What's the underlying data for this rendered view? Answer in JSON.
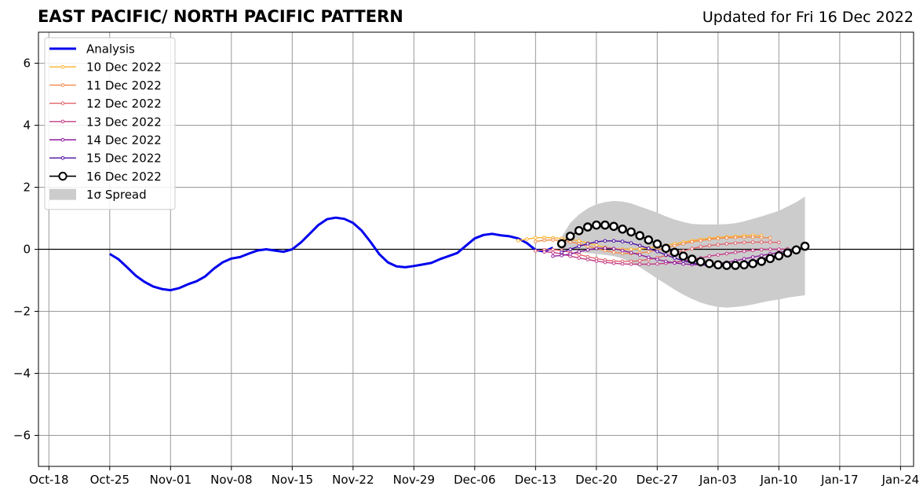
{
  "header": {
    "title": "EAST PACIFIC/ NORTH PACIFIC PATTERN",
    "updated": "Updated for Fri 16 Dec 2022"
  },
  "colors": {
    "analysis": "#0000ee",
    "spread": "#cccccc",
    "grid": "#999999",
    "forecast_10": "#fdb230",
    "forecast_11": "#f38a4d",
    "forecast_12": "#e1636b",
    "forecast_13": "#c33d86",
    "forecast_14": "#8f1e9e",
    "forecast_15": "#4d0fa2",
    "forecast_16": "#000000"
  },
  "chart_data": {
    "type": "line",
    "title": "EAST PACIFIC/ NORTH PACIFIC PATTERN",
    "xlabel": "",
    "ylabel": "",
    "x_unit": "days since Oct-18 2022 tick",
    "xlim": [
      -1.2,
      99.5
    ],
    "ylim": [
      -7,
      7
    ],
    "grid": true,
    "legend_position": "top-left",
    "x_ticks": [
      {
        "x": 0,
        "label": "Oct-18"
      },
      {
        "x": 7,
        "label": "Oct-25"
      },
      {
        "x": 14,
        "label": "Nov-01"
      },
      {
        "x": 21,
        "label": "Nov-08"
      },
      {
        "x": 28,
        "label": "Nov-15"
      },
      {
        "x": 35,
        "label": "Nov-22"
      },
      {
        "x": 42,
        "label": "Nov-29"
      },
      {
        "x": 49,
        "label": "Dec-06"
      },
      {
        "x": 56,
        "label": "Dec-13"
      },
      {
        "x": 63,
        "label": "Dec-20"
      },
      {
        "x": 70,
        "label": "Dec-27"
      },
      {
        "x": 77,
        "label": "Jan-03"
      },
      {
        "x": 84,
        "label": "Jan-10"
      },
      {
        "x": 91,
        "label": "Jan-17"
      },
      {
        "x": 98,
        "label": "Jan-24"
      }
    ],
    "y_ticks": [
      {
        "y": 6,
        "label": "6"
      },
      {
        "y": 4,
        "label": "4"
      },
      {
        "y": 2,
        "label": "2"
      },
      {
        "y": 0,
        "label": "0"
      },
      {
        "y": -2,
        "label": "−2"
      },
      {
        "y": -4,
        "label": "−4"
      },
      {
        "y": -6,
        "label": "−6"
      }
    ],
    "legend": [
      {
        "label": "Analysis",
        "style": "analysis",
        "color_key": "analysis"
      },
      {
        "label": "10 Dec 2022",
        "style": "small",
        "color_key": "forecast_10"
      },
      {
        "label": "11 Dec 2022",
        "style": "small",
        "color_key": "forecast_11"
      },
      {
        "label": "12 Dec 2022",
        "style": "small",
        "color_key": "forecast_12"
      },
      {
        "label": "13 Dec 2022",
        "style": "small",
        "color_key": "forecast_13"
      },
      {
        "label": "14 Dec 2022",
        "style": "small",
        "color_key": "forecast_14"
      },
      {
        "label": "15 Dec 2022",
        "style": "small",
        "color_key": "forecast_15"
      },
      {
        "label": "16 Dec 2022",
        "style": "big",
        "color_key": "forecast_16"
      },
      {
        "label": "1σ Spread",
        "style": "spread",
        "color_key": "spread"
      }
    ],
    "analysis": {
      "x": [
        7,
        8,
        9,
        10,
        11,
        12,
        13,
        14,
        15,
        16,
        17,
        18,
        19,
        20,
        21,
        22,
        23,
        24,
        25,
        26,
        27,
        28,
        29,
        30,
        31,
        32,
        33,
        34,
        35,
        36,
        37,
        38,
        39,
        40,
        41,
        42,
        43,
        44,
        45,
        46,
        47,
        48,
        49,
        50,
        51,
        52,
        53,
        54,
        55,
        56,
        57,
        58
      ],
      "y": [
        -0.15,
        -0.32,
        -0.58,
        -0.85,
        -1.05,
        -1.2,
        -1.28,
        -1.32,
        -1.25,
        -1.13,
        -1.03,
        -0.87,
        -0.62,
        -0.42,
        -0.3,
        -0.25,
        -0.14,
        -0.04,
        0.0,
        -0.04,
        -0.08,
        0.0,
        0.22,
        0.5,
        0.78,
        0.97,
        1.02,
        0.98,
        0.85,
        0.6,
        0.24,
        -0.15,
        -0.42,
        -0.55,
        -0.58,
        -0.54,
        -0.49,
        -0.44,
        -0.32,
        -0.22,
        -0.12,
        0.12,
        0.35,
        0.46,
        0.5,
        0.45,
        0.42,
        0.35,
        0.2,
        -0.02,
        -0.07,
        0.05
      ]
    },
    "spread": {
      "x": [
        59,
        60,
        61,
        62,
        63,
        64,
        65,
        66,
        67,
        68,
        69,
        70,
        71,
        72,
        73,
        74,
        75,
        76,
        77,
        78,
        79,
        80,
        81,
        82,
        83,
        84,
        85,
        86,
        87
      ],
      "upper": [
        0.4,
        0.85,
        1.12,
        1.32,
        1.45,
        1.52,
        1.56,
        1.54,
        1.48,
        1.38,
        1.28,
        1.18,
        1.06,
        0.96,
        0.88,
        0.82,
        0.8,
        0.8,
        0.8,
        0.81,
        0.84,
        0.9,
        0.98,
        1.06,
        1.15,
        1.24,
        1.38,
        1.52,
        1.7
      ],
      "lower": [
        0.0,
        -0.05,
        -0.08,
        -0.12,
        -0.15,
        -0.18,
        -0.22,
        -0.3,
        -0.42,
        -0.58,
        -0.76,
        -0.95,
        -1.12,
        -1.3,
        -1.46,
        -1.6,
        -1.72,
        -1.8,
        -1.86,
        -1.88,
        -1.86,
        -1.83,
        -1.78,
        -1.72,
        -1.66,
        -1.62,
        -1.56,
        -1.52,
        -1.48
      ]
    },
    "series": [
      {
        "name": "10 Dec 2022",
        "color_key": "forecast_10",
        "marker": "small",
        "x": [
          54,
          55,
          56,
          57,
          58,
          59,
          60,
          61,
          62,
          63,
          64,
          65,
          66,
          67,
          68,
          69,
          70,
          71,
          72,
          73,
          74,
          75,
          76,
          77,
          78,
          79,
          80,
          81,
          82
        ],
        "y": [
          0.28,
          0.33,
          0.37,
          0.38,
          0.37,
          0.35,
          0.32,
          0.27,
          0.2,
          0.13,
          0.06,
          0.02,
          0.0,
          0.0,
          0.01,
          0.04,
          0.08,
          0.13,
          0.18,
          0.23,
          0.28,
          0.32,
          0.36,
          0.38,
          0.4,
          0.42,
          0.44,
          0.45,
          0.44
        ]
      },
      {
        "name": "11 Dec 2022",
        "color_key": "forecast_11",
        "marker": "small",
        "x": [
          56,
          57,
          58,
          59,
          60,
          61,
          62,
          63,
          64,
          65,
          66,
          67,
          68,
          69,
          70,
          71,
          72,
          73,
          74,
          75,
          76,
          77,
          78,
          79,
          80,
          81,
          82,
          83
        ],
        "y": [
          0.25,
          0.29,
          0.3,
          0.28,
          0.24,
          0.18,
          0.1,
          0.03,
          -0.04,
          -0.1,
          -0.13,
          -0.14,
          -0.12,
          -0.08,
          -0.02,
          0.05,
          0.12,
          0.18,
          0.24,
          0.28,
          0.32,
          0.35,
          0.37,
          0.38,
          0.39,
          0.39,
          0.38,
          0.37
        ]
      },
      {
        "name": "12 Dec 2022",
        "color_key": "forecast_12",
        "marker": "small",
        "x": [
          56,
          57,
          58,
          59,
          60,
          61,
          62,
          63,
          64,
          65,
          66,
          67,
          68,
          69,
          70,
          71,
          72,
          73,
          74,
          75,
          76,
          77,
          78,
          79,
          80,
          81,
          82,
          83,
          84
        ],
        "y": [
          -0.05,
          -0.02,
          -0.01,
          -0.04,
          -0.1,
          -0.17,
          -0.24,
          -0.3,
          -0.35,
          -0.38,
          -0.39,
          -0.39,
          -0.37,
          -0.33,
          -0.27,
          -0.2,
          -0.12,
          -0.05,
          0.02,
          0.08,
          0.12,
          0.15,
          0.18,
          0.2,
          0.22,
          0.23,
          0.23,
          0.23,
          0.22
        ]
      },
      {
        "name": "13 Dec 2022",
        "color_key": "forecast_13",
        "marker": "small",
        "x": [
          57,
          58,
          59,
          60,
          61,
          62,
          63,
          64,
          65,
          66,
          67,
          68,
          69,
          70,
          71,
          72,
          73,
          74,
          75,
          76,
          77,
          78,
          79,
          80,
          81,
          82,
          83,
          84,
          85
        ],
        "y": [
          -0.08,
          -0.1,
          -0.15,
          -0.22,
          -0.28,
          -0.33,
          -0.38,
          -0.42,
          -0.45,
          -0.47,
          -0.48,
          -0.48,
          -0.48,
          -0.47,
          -0.45,
          -0.42,
          -0.38,
          -0.33,
          -0.28,
          -0.22,
          -0.18,
          -0.14,
          -0.1,
          -0.06,
          -0.03,
          -0.01,
          0.0,
          0.0,
          0.01
        ]
      },
      {
        "name": "14 Dec 2022",
        "color_key": "forecast_14",
        "marker": "small",
        "x": [
          58,
          59,
          60,
          61,
          62,
          63,
          64,
          65,
          66,
          67,
          68,
          69,
          70,
          71,
          72,
          73,
          74,
          75,
          76,
          77,
          78,
          79,
          80,
          81,
          82,
          83,
          84,
          85,
          86
        ],
        "y": [
          -0.22,
          -0.2,
          -0.15,
          -0.08,
          -0.02,
          0.03,
          0.04,
          0.02,
          -0.04,
          -0.11,
          -0.18,
          -0.26,
          -0.33,
          -0.39,
          -0.44,
          -0.47,
          -0.49,
          -0.5,
          -0.49,
          -0.46,
          -0.42,
          -0.37,
          -0.31,
          -0.25,
          -0.2,
          -0.15,
          -0.1,
          -0.06,
          -0.03
        ]
      },
      {
        "name": "15 Dec 2022",
        "color_key": "forecast_15",
        "marker": "small",
        "x": [
          59,
          60,
          61,
          62,
          63,
          64,
          65,
          66,
          67,
          68,
          69,
          70,
          71,
          72,
          73,
          74,
          75,
          76,
          77,
          78,
          79,
          80,
          81,
          82,
          83,
          84,
          85,
          86
        ],
        "y": [
          -0.1,
          0.0,
          0.1,
          0.18,
          0.24,
          0.27,
          0.27,
          0.25,
          0.2,
          0.12,
          0.03,
          -0.07,
          -0.18,
          -0.28,
          -0.37,
          -0.44,
          -0.49,
          -0.53,
          -0.54,
          -0.53,
          -0.5,
          -0.45,
          -0.39,
          -0.32,
          -0.25,
          -0.18,
          -0.11,
          -0.05
        ]
      },
      {
        "name": "16 Dec 2022",
        "color_key": "forecast_16",
        "marker": "big",
        "x": [
          59,
          60,
          61,
          62,
          63,
          64,
          65,
          66,
          67,
          68,
          69,
          70,
          71,
          72,
          73,
          74,
          75,
          76,
          77,
          78,
          79,
          80,
          81,
          82,
          83,
          84,
          85,
          86,
          87
        ],
        "y": [
          0.18,
          0.42,
          0.6,
          0.72,
          0.78,
          0.78,
          0.74,
          0.65,
          0.56,
          0.44,
          0.3,
          0.17,
          0.03,
          -0.1,
          -0.22,
          -0.32,
          -0.4,
          -0.46,
          -0.5,
          -0.52,
          -0.52,
          -0.5,
          -0.46,
          -0.39,
          -0.3,
          -0.21,
          -0.12,
          -0.02,
          0.1
        ]
      }
    ]
  }
}
